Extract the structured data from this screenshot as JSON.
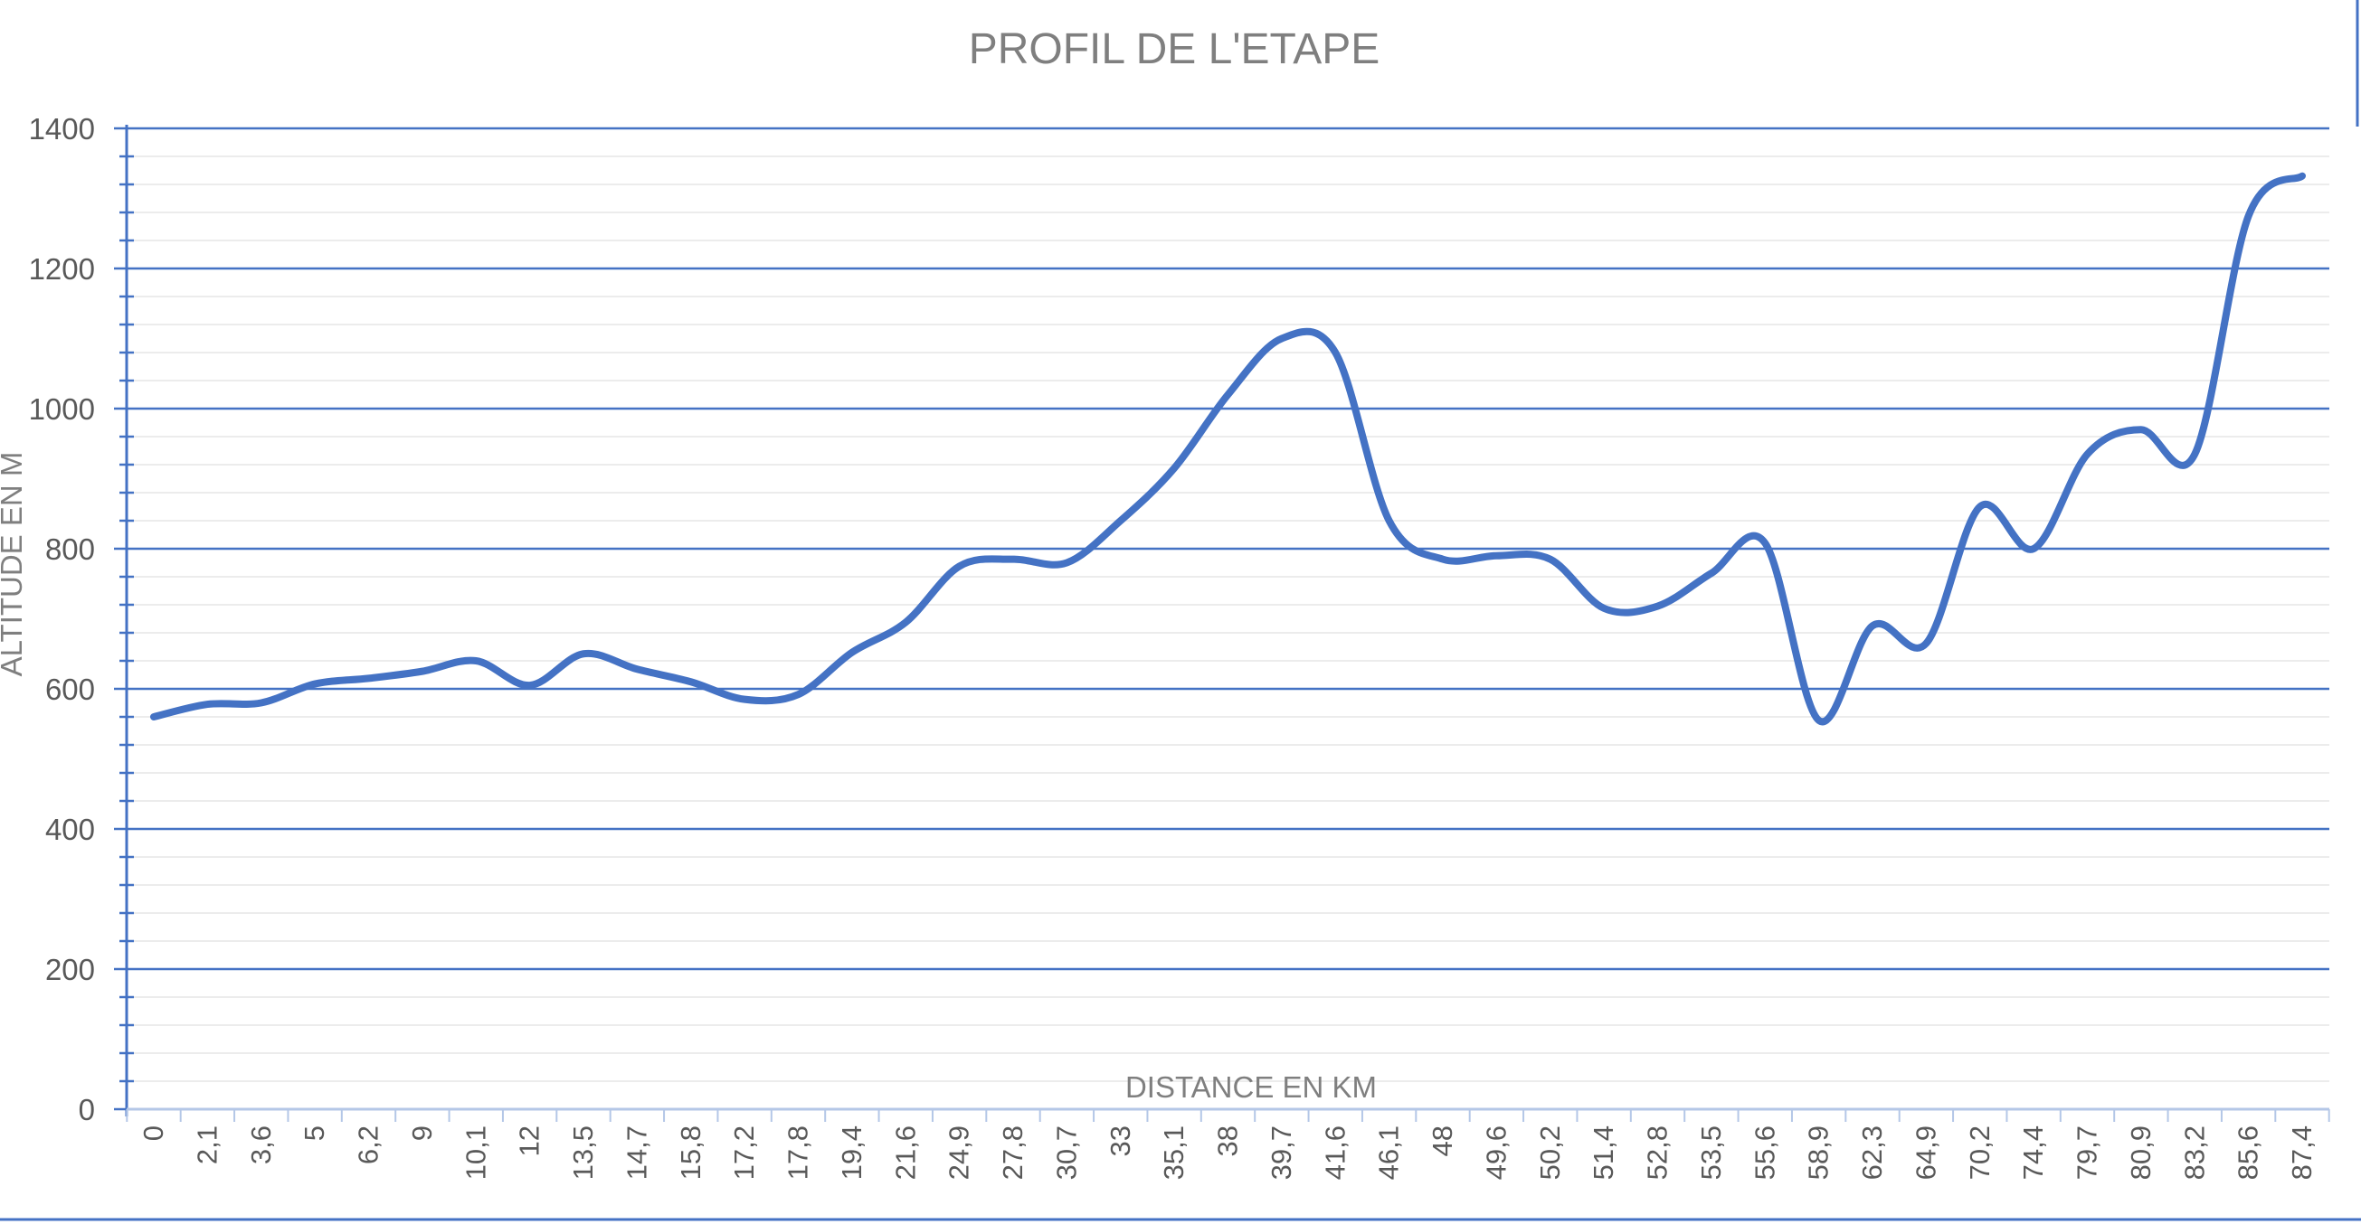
{
  "chart_data": {
    "type": "line",
    "title": "PROFIL DE L'ETAPE",
    "xlabel": "DISTANCE EN KM",
    "ylabel": "ALTITUDE EN M",
    "ylim": [
      0,
      1400
    ],
    "yticks": [
      "0",
      "200",
      "400",
      "600",
      "800",
      "1000",
      "1200",
      "1400"
    ],
    "grid": true,
    "legend": "none",
    "colors": {
      "line": "#4472c4",
      "grid_major": "#4472c4",
      "grid_minor": "#e6e6e6",
      "text": "#7f7f7f"
    },
    "categories": [
      "0",
      "2,1",
      "3,6",
      "5",
      "6,2",
      "9",
      "10,1",
      "12",
      "13,5",
      "14,7",
      "15,8",
      "17,2",
      "17,8",
      "19,4",
      "21,6",
      "24,9",
      "27,8",
      "30,7",
      "33",
      "35,1",
      "38",
      "39,7",
      "41,6",
      "46,1",
      "48",
      "49,6",
      "50,2",
      "51,4",
      "52,8",
      "53,5",
      "55,6",
      "58,9",
      "62,3",
      "64,9",
      "70,2",
      "74,4",
      "79,7",
      "80,9",
      "83,2",
      "85,6",
      "87,4"
    ],
    "series": [
      {
        "values": [
          560,
          578,
          580,
          607,
          615,
          625,
          640,
          605,
          650,
          628,
          610,
          585,
          592,
          652,
          695,
          775,
          785,
          780,
          840,
          915,
          1020,
          1100,
          1080,
          840,
          785,
          790,
          785,
          715,
          718,
          765,
          808,
          555,
          690,
          665,
          860,
          800,
          935,
          970,
          935,
          1275,
          1332
        ]
      }
    ]
  }
}
